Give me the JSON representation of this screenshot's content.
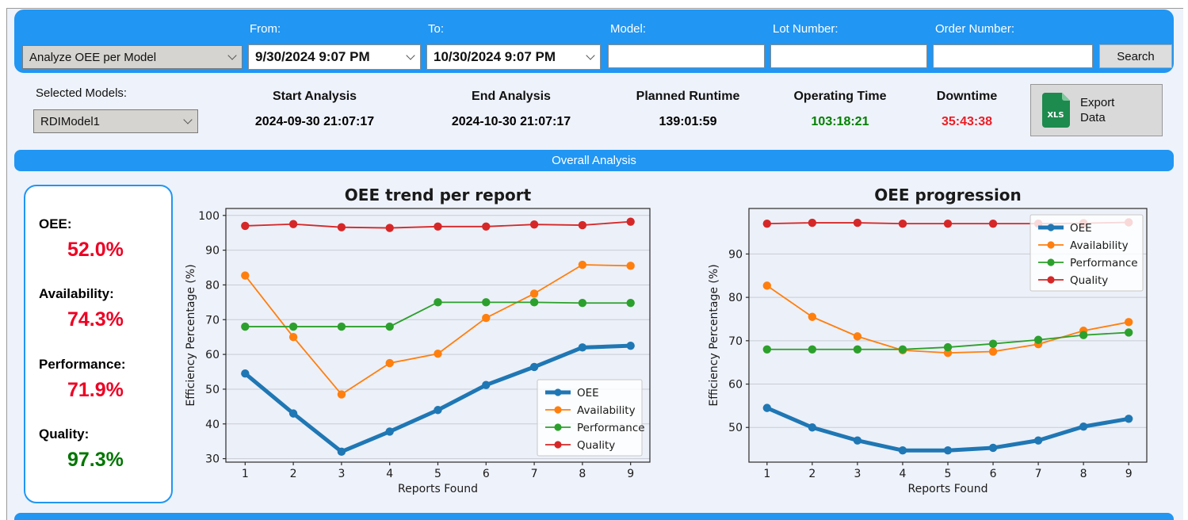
{
  "header": {
    "analysis_type_select": "Analyze OEE per Model",
    "from_label": "From:",
    "from_value": "9/30/2024 9:07 PM",
    "to_label": "To:",
    "to_value": "10/30/2024 9:07 PM",
    "model_label": "Model:",
    "model_value": "",
    "lot_label": "Lot Number:",
    "lot_value": "",
    "order_label": "Order Number:",
    "order_value": "",
    "search_label": "Search"
  },
  "summary": {
    "selected_models_label": "Selected Models:",
    "selected_model": "RDIModel1",
    "columns": [
      {
        "label": "Start Analysis",
        "value": "2024-09-30 21:07:17",
        "color": "#000000"
      },
      {
        "label": "End Analysis",
        "value": "2024-10-30 21:07:17",
        "color": "#000000"
      },
      {
        "label": "Planned Runtime",
        "value": "139:01:59",
        "color": "#000000"
      },
      {
        "label": "Operating Time",
        "value": "103:18:21",
        "color": "#008000"
      },
      {
        "label": "Downtime",
        "value": "35:43:38",
        "color": "#ed1c24"
      }
    ],
    "export_button": {
      "line1": "Export",
      "line2": "Data",
      "icon": "xls-file-icon",
      "icon_label": "XLS"
    }
  },
  "section_banner": "Overall Analysis",
  "kpi_panel": {
    "items": [
      {
        "label": "OEE:",
        "value": "52.0%",
        "color": "#ed0022"
      },
      {
        "label": "Availability:",
        "value": "74.3%",
        "color": "#ed0022"
      },
      {
        "label": "Performance:",
        "value": "71.9%",
        "color": "#ed0022"
      },
      {
        "label": "Quality:",
        "value": "97.3%",
        "color": "#007500"
      }
    ]
  },
  "colors": {
    "accent_blue": "#2196f3",
    "status_green": "#008000",
    "status_red": "#ed1c24",
    "plot_background": "#ecf0f8",
    "gridline": "#c9ccd4"
  },
  "chart_data": [
    {
      "type": "line",
      "title": "OEE trend per report",
      "xlabel": "Reports Found",
      "ylabel": "Efficiency Percentage (%)",
      "x": [
        1,
        2,
        3,
        4,
        5,
        6,
        7,
        8,
        9
      ],
      "xticks": [
        1,
        2,
        3,
        4,
        5,
        6,
        7,
        8,
        9
      ],
      "yticks": [
        30,
        40,
        50,
        60,
        70,
        80,
        90,
        100
      ],
      "ylim": [
        29,
        102
      ],
      "grid": "horizontal",
      "legend_position": "lower-right",
      "series": [
        {
          "name": "OEE",
          "color": "#1f77b4",
          "width": 5,
          "values": [
            54.5,
            43.0,
            32.0,
            37.8,
            44.0,
            51.2,
            56.4,
            62.0,
            62.5
          ]
        },
        {
          "name": "Availability",
          "color": "#ff7f0e",
          "width": 1.8,
          "values": [
            82.7,
            65.0,
            48.5,
            57.5,
            60.2,
            70.5,
            77.5,
            85.8,
            85.5
          ]
        },
        {
          "name": "Performance",
          "color": "#2ca02c",
          "width": 1.8,
          "values": [
            68.0,
            68.0,
            68.0,
            68.0,
            75.0,
            75.0,
            75.0,
            74.8,
            74.8
          ]
        },
        {
          "name": "Quality",
          "color": "#d62728",
          "width": 1.8,
          "values": [
            97.0,
            97.5,
            96.6,
            96.4,
            96.8,
            96.8,
            97.4,
            97.2,
            98.2
          ]
        }
      ]
    },
    {
      "type": "line",
      "title": "OEE progression",
      "xlabel": "Reports Found",
      "ylabel": "Efficiency Percentage (%)",
      "x": [
        1,
        2,
        3,
        4,
        5,
        6,
        7,
        8,
        9
      ],
      "xticks": [
        1,
        2,
        3,
        4,
        5,
        6,
        7,
        8,
        9
      ],
      "yticks": [
        50,
        60,
        70,
        80,
        90
      ],
      "ylim": [
        42,
        100.5
      ],
      "grid": "horizontal",
      "legend_position": "upper-right",
      "series": [
        {
          "name": "OEE",
          "color": "#1f77b4",
          "width": 5,
          "values": [
            54.5,
            50.0,
            47.0,
            44.7,
            44.7,
            45.3,
            47.0,
            50.2,
            52.0
          ]
        },
        {
          "name": "Availability",
          "color": "#ff7f0e",
          "width": 1.8,
          "values": [
            82.7,
            75.5,
            71.0,
            67.8,
            67.2,
            67.5,
            69.2,
            72.3,
            74.3
          ]
        },
        {
          "name": "Performance",
          "color": "#2ca02c",
          "width": 1.8,
          "values": [
            68.0,
            68.0,
            68.0,
            68.0,
            68.5,
            69.3,
            70.2,
            71.3,
            71.9
          ]
        },
        {
          "name": "Quality",
          "color": "#d62728",
          "width": 1.8,
          "values": [
            97.0,
            97.2,
            97.2,
            97.0,
            97.0,
            97.0,
            97.0,
            97.1,
            97.3
          ]
        }
      ]
    }
  ]
}
